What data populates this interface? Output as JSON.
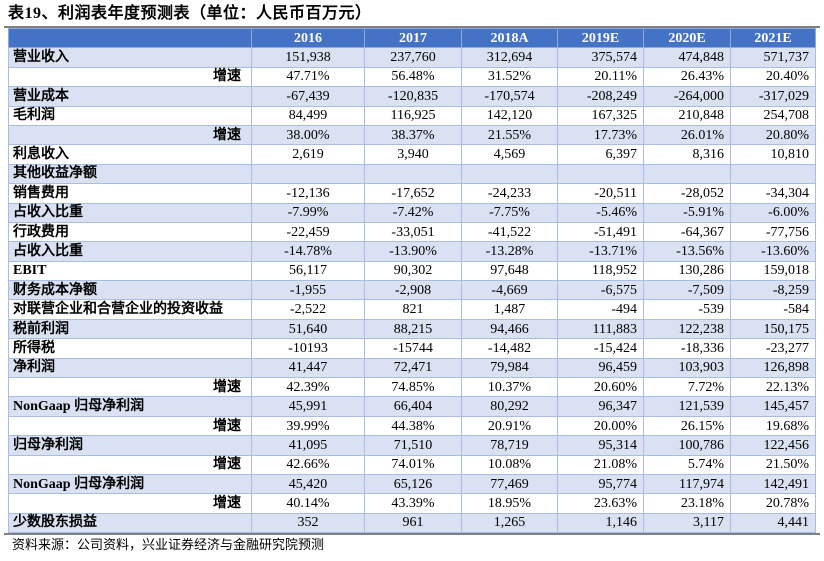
{
  "title": "表19、利润表年度预测表（单位：人民币百万元）",
  "columns": [
    "",
    "2016",
    "2017",
    "2018A",
    "2019E",
    "2020E",
    "2021E"
  ],
  "rows": [
    {
      "label": "营业收入",
      "growth": false,
      "values": [
        "151,938",
        "237,760",
        "312,694",
        "375,574",
        "474,848",
        "571,737"
      ]
    },
    {
      "label": "增速",
      "growth": true,
      "values": [
        "47.71%",
        "56.48%",
        "31.52%",
        "20.11%",
        "26.43%",
        "20.40%"
      ]
    },
    {
      "label": "营业成本",
      "growth": false,
      "values": [
        "-67,439",
        "-120,835",
        "-170,574",
        "-208,249",
        "-264,000",
        "-317,029"
      ]
    },
    {
      "label": "毛利润",
      "growth": false,
      "values": [
        "84,499",
        "116,925",
        "142,120",
        "167,325",
        "210,848",
        "254,708"
      ]
    },
    {
      "label": "增速",
      "growth": true,
      "values": [
        "38.00%",
        "38.37%",
        "21.55%",
        "17.73%",
        "26.01%",
        "20.80%"
      ]
    },
    {
      "label": "利息收入",
      "growth": false,
      "values": [
        "2,619",
        "3,940",
        "4,569",
        "6,397",
        "8,316",
        "10,810"
      ]
    },
    {
      "label": "其他收益净额",
      "growth": false,
      "values": [
        "",
        "",
        "",
        "",
        "",
        ""
      ]
    },
    {
      "label": "销售费用",
      "growth": false,
      "values": [
        "-12,136",
        "-17,652",
        "-24,233",
        "-20,511",
        "-28,052",
        "-34,304"
      ]
    },
    {
      "label": "占收入比重",
      "growth": false,
      "values": [
        "-7.99%",
        "-7.42%",
        "-7.75%",
        "-5.46%",
        "-5.91%",
        "-6.00%"
      ]
    },
    {
      "label": "行政费用",
      "growth": false,
      "values": [
        "-22,459",
        "-33,051",
        "-41,522",
        "-51,491",
        "-64,367",
        "-77,756"
      ]
    },
    {
      "label": "占收入比重",
      "growth": false,
      "values": [
        "-14.78%",
        "-13.90%",
        "-13.28%",
        "-13.71%",
        "-13.56%",
        "-13.60%"
      ]
    },
    {
      "label": "EBIT",
      "growth": false,
      "values": [
        "56,117",
        "90,302",
        "97,648",
        "118,952",
        "130,286",
        "159,018"
      ]
    },
    {
      "label": "财务成本净额",
      "growth": false,
      "values": [
        "-1,955",
        "-2,908",
        "-4,669",
        "-6,575",
        "-7,509",
        "-8,259"
      ]
    },
    {
      "label": "对联营企业和合营企业的投资收益",
      "growth": false,
      "values": [
        "-2,522",
        "821",
        "1,487",
        "-494",
        "-539",
        "-584"
      ]
    },
    {
      "label": "税前利润",
      "growth": false,
      "values": [
        "51,640",
        "88,215",
        "94,466",
        "111,883",
        "122,238",
        "150,175"
      ]
    },
    {
      "label": "所得税",
      "growth": false,
      "values": [
        "-10193",
        "-15744",
        "-14,482",
        "-15,424",
        "-18,336",
        "-23,277"
      ]
    },
    {
      "label": "净利润",
      "growth": false,
      "values": [
        "41,447",
        "72,471",
        "79,984",
        "96,459",
        "103,903",
        "126,898"
      ]
    },
    {
      "label": "增速",
      "growth": true,
      "values": [
        "42.39%",
        "74.85%",
        "10.37%",
        "20.60%",
        "7.72%",
        "22.13%"
      ]
    },
    {
      "label": "NonGaap 归母净利润",
      "growth": false,
      "values": [
        "45,991",
        "66,404",
        "80,292",
        "96,347",
        "121,539",
        "145,457"
      ]
    },
    {
      "label": "增速",
      "growth": true,
      "values": [
        "39.99%",
        "44.38%",
        "20.91%",
        "20.00%",
        "26.15%",
        "19.68%"
      ]
    },
    {
      "label": "归母净利润",
      "growth": false,
      "values": [
        "41,095",
        "71,510",
        "78,719",
        "95,314",
        "100,786",
        "122,456"
      ]
    },
    {
      "label": "增速",
      "growth": true,
      "values": [
        "42.66%",
        "74.01%",
        "10.08%",
        "21.08%",
        "5.74%",
        "21.50%"
      ]
    },
    {
      "label": "NonGaap 归母净利润",
      "growth": false,
      "values": [
        "45,420",
        "65,126",
        "77,469",
        "95,774",
        "117,974",
        "142,491"
      ]
    },
    {
      "label": "增速",
      "growth": true,
      "values": [
        "40.14%",
        "43.39%",
        "18.95%",
        "23.63%",
        "23.18%",
        "20.78%"
      ]
    },
    {
      "label": "少数股东损益",
      "growth": false,
      "values": [
        "352",
        "961",
        "1,265",
        "1,146",
        "3,117",
        "4,441"
      ]
    }
  ],
  "source": "资料来源：公司资料，兴业证券经济与金融研究院预测",
  "colors": {
    "header_bg": "#4472c4",
    "shade_bg": "#d9e1f2"
  }
}
